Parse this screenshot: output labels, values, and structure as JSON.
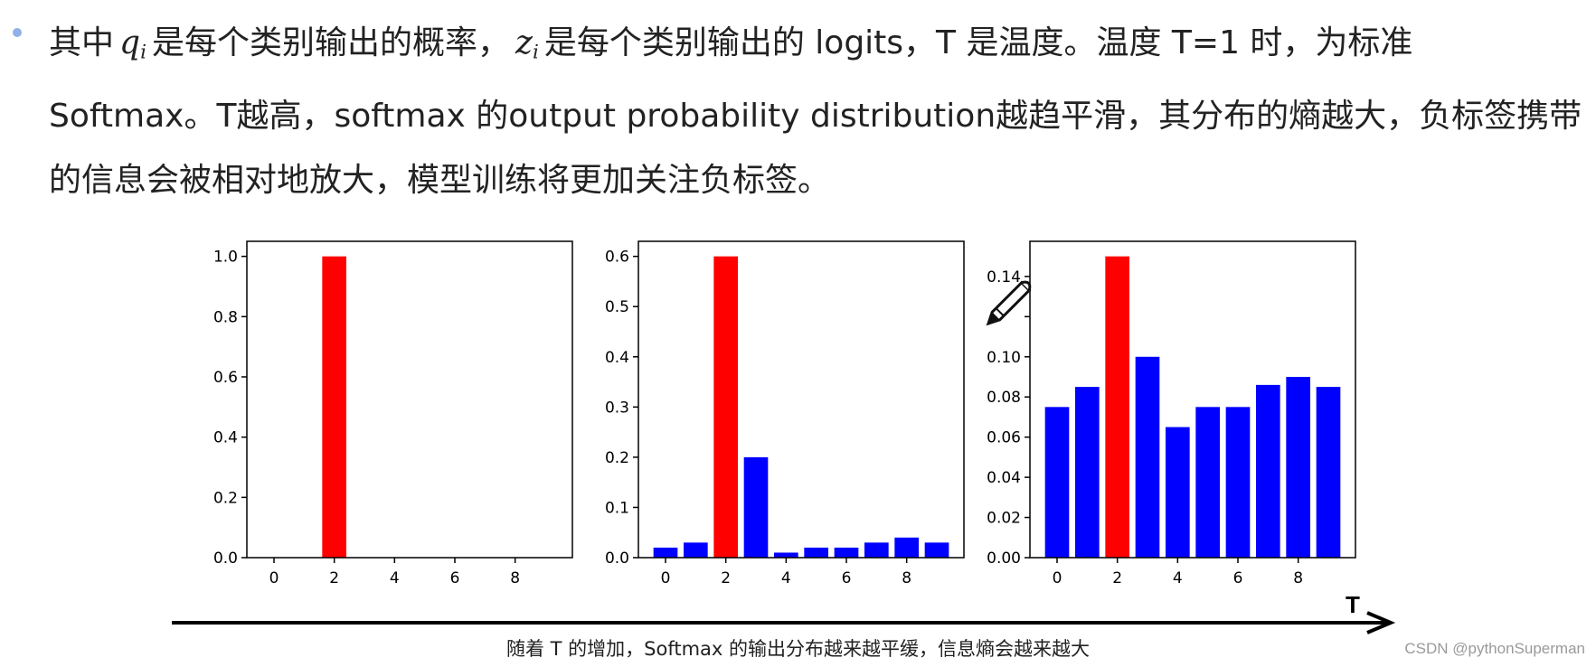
{
  "paragraph": {
    "t1": "其中",
    "q_var": "q",
    "q_sub": "i",
    "t2": "是每个类别输出的概率，",
    "z_var": "z",
    "z_sub": "i",
    "t3": "是每个类别输出的 logits，T 是温度。温度 T=1 时，为标准 Softmax。T越高，softmax 的output probability distribution越趋平滑，其分布的熵越大，负标签携带的信息会被相对地放大，模型训练将更加关注负标签。"
  },
  "chart_data": [
    {
      "type": "bar",
      "x": [
        0,
        1,
        2,
        3,
        4,
        5,
        6,
        7,
        8,
        9
      ],
      "values": [
        0,
        0,
        1.0,
        0,
        0,
        0,
        0,
        0,
        0,
        0
      ],
      "bar_colors": [
        "#0000ff",
        "#0000ff",
        "#ff0000",
        "#0000ff",
        "#0000ff",
        "#0000ff",
        "#0000ff",
        "#0000ff",
        "#0000ff",
        "#0000ff"
      ],
      "ylim": [
        0,
        1.05
      ],
      "yticks": [
        0,
        0.2,
        0.4,
        0.6,
        0.8,
        1.0
      ],
      "ytick_labels": [
        "0.0",
        "0.2",
        "0.4",
        "0.6",
        "0.8",
        "1.0"
      ],
      "xticks": [
        0,
        2,
        4,
        6,
        8
      ],
      "xtick_labels": [
        "0",
        "2",
        "4",
        "6",
        "8"
      ]
    },
    {
      "type": "bar",
      "x": [
        0,
        1,
        2,
        3,
        4,
        5,
        6,
        7,
        8,
        9
      ],
      "values": [
        0.02,
        0.03,
        0.6,
        0.2,
        0.01,
        0.02,
        0.02,
        0.03,
        0.04,
        0.03
      ],
      "bar_colors": [
        "#0000ff",
        "#0000ff",
        "#ff0000",
        "#0000ff",
        "#0000ff",
        "#0000ff",
        "#0000ff",
        "#0000ff",
        "#0000ff",
        "#0000ff"
      ],
      "ylim": [
        0,
        0.63
      ],
      "yticks": [
        0,
        0.1,
        0.2,
        0.3,
        0.4,
        0.5,
        0.6
      ],
      "ytick_labels": [
        "0.0",
        "0.1",
        "0.2",
        "0.3",
        "0.4",
        "0.5",
        "0.6"
      ],
      "xticks": [
        0,
        2,
        4,
        6,
        8
      ],
      "xtick_labels": [
        "0",
        "2",
        "4",
        "6",
        "8"
      ]
    },
    {
      "type": "bar",
      "x": [
        0,
        1,
        2,
        3,
        4,
        5,
        6,
        7,
        8,
        9
      ],
      "values": [
        0.075,
        0.085,
        0.15,
        0.1,
        0.065,
        0.075,
        0.075,
        0.086,
        0.09,
        0.085
      ],
      "bar_colors": [
        "#0000ff",
        "#0000ff",
        "#ff0000",
        "#0000ff",
        "#0000ff",
        "#0000ff",
        "#0000ff",
        "#0000ff",
        "#0000ff",
        "#0000ff"
      ],
      "ylim": [
        0,
        0.1575
      ],
      "yticks": [
        0,
        0.02,
        0.04,
        0.06,
        0.08,
        0.1,
        0.12,
        0.14
      ],
      "ytick_labels": [
        "0.00",
        "0.02",
        "0.04",
        "0.06",
        "0.08",
        "0.10",
        "",
        "0.14"
      ],
      "xticks": [
        0,
        2,
        4,
        6,
        8
      ],
      "xtick_labels": [
        "0",
        "2",
        "4",
        "6",
        "8"
      ]
    }
  ],
  "axis_arrow_label": "T",
  "caption": "随着 T 的增加，Softmax 的输出分布越来越平缓，信息熵会越来越大",
  "watermark": "CSDN @pythonSuperman",
  "icons": {
    "pen": "pencil-icon",
    "bullet": "bullet-icon"
  },
  "colors": {
    "accent_bar": "#ff0000",
    "bar": "#0000ff",
    "bullet": "#8fb1e6"
  }
}
